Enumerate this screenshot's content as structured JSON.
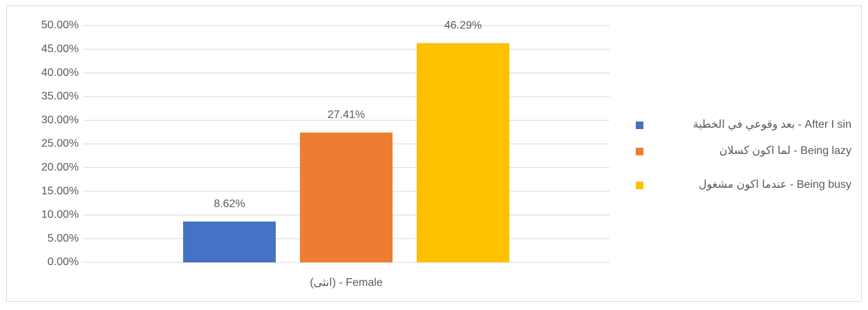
{
  "chart_data": {
    "type": "bar",
    "categories": [
      "Female - (انثى)"
    ],
    "series": [
      {
        "name": "After I sin - بعد وقوعي في الخطية",
        "color": "#4472c4",
        "values": [
          8.62
        ],
        "value_labels": [
          "8.62%"
        ]
      },
      {
        "name": "Being lazy - لما اكون كسلان",
        "color": "#ed7d31",
        "values": [
          27.41
        ],
        "value_labels": [
          "27.41%"
        ]
      },
      {
        "name": "Being busy - عندما اكون مشغول",
        "color": "#ffc000",
        "values": [
          46.29
        ],
        "value_labels": [
          "46.29%"
        ]
      }
    ],
    "ylim": [
      0,
      50
    ],
    "yticks": [
      {
        "value": 0,
        "label": "0.00%"
      },
      {
        "value": 5,
        "label": "5.00%"
      },
      {
        "value": 10,
        "label": "10.00%"
      },
      {
        "value": 15,
        "label": "15.00%"
      },
      {
        "value": 20,
        "label": "20.00%"
      },
      {
        "value": 25,
        "label": "25.00%"
      },
      {
        "value": 30,
        "label": "30.00%"
      },
      {
        "value": 35,
        "label": "35.00%"
      },
      {
        "value": 40,
        "label": "40.00%"
      },
      {
        "value": 45,
        "label": "45.00%"
      },
      {
        "value": 50,
        "label": "50.00%"
      }
    ],
    "grid": true,
    "legend": "right"
  }
}
